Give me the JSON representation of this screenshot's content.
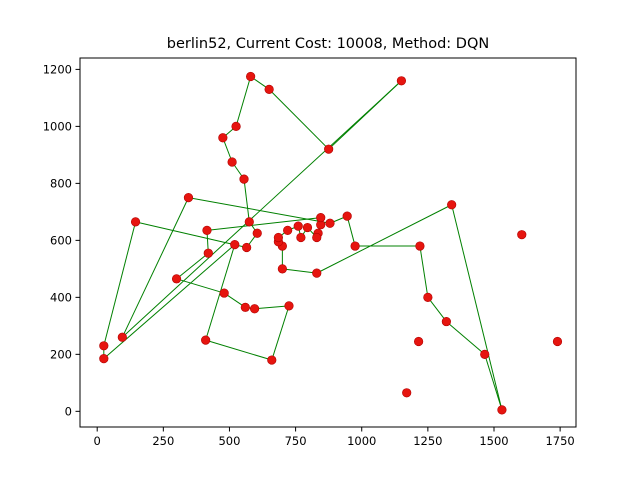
{
  "chart_data": {
    "type": "scatter",
    "title": "berlin52, Current Cost: 10008, Method: DQN",
    "xlabel": "",
    "ylabel": "",
    "xlim": [
      -65,
      1810
    ],
    "ylim": [
      -55,
      1240
    ],
    "grid": false,
    "legend": "none",
    "xticks": [
      0,
      250,
      500,
      750,
      1000,
      1250,
      1500,
      1750
    ],
    "yticks": [
      0,
      200,
      400,
      600,
      800,
      1000,
      1200
    ],
    "colors": {
      "point": "#e6150f",
      "point_edge": "#b30000",
      "route": "#008000"
    },
    "points": [
      {
        "x": 565,
        "y": 575
      },
      {
        "x": 25,
        "y": 185
      },
      {
        "x": 345,
        "y": 750
      },
      {
        "x": 945,
        "y": 685
      },
      {
        "x": 845,
        "y": 655
      },
      {
        "x": 880,
        "y": 660
      },
      {
        "x": 25,
        "y": 230
      },
      {
        "x": 525,
        "y": 1000
      },
      {
        "x": 580,
        "y": 1175
      },
      {
        "x": 650,
        "y": 1130
      },
      {
        "x": 1605,
        "y": 620
      },
      {
        "x": 1220,
        "y": 580
      },
      {
        "x": 1465,
        "y": 200
      },
      {
        "x": 1530,
        "y": 5
      },
      {
        "x": 845,
        "y": 680
      },
      {
        "x": 725,
        "y": 370
      },
      {
        "x": 145,
        "y": 665
      },
      {
        "x": 415,
        "y": 635
      },
      {
        "x": 510,
        "y": 875
      },
      {
        "x": 560,
        "y": 365
      },
      {
        "x": 300,
        "y": 465
      },
      {
        "x": 520,
        "y": 585
      },
      {
        "x": 480,
        "y": 415
      },
      {
        "x": 835,
        "y": 625
      },
      {
        "x": 975,
        "y": 580
      },
      {
        "x": 1215,
        "y": 245
      },
      {
        "x": 1320,
        "y": 315
      },
      {
        "x": 1250,
        "y": 400
      },
      {
        "x": 660,
        "y": 180
      },
      {
        "x": 410,
        "y": 250
      },
      {
        "x": 420,
        "y": 555
      },
      {
        "x": 575,
        "y": 665
      },
      {
        "x": 1150,
        "y": 1160
      },
      {
        "x": 700,
        "y": 580
      },
      {
        "x": 685,
        "y": 595
      },
      {
        "x": 685,
        "y": 610
      },
      {
        "x": 770,
        "y": 610
      },
      {
        "x": 795,
        "y": 645
      },
      {
        "x": 720,
        "y": 635
      },
      {
        "x": 760,
        "y": 650
      },
      {
        "x": 475,
        "y": 960
      },
      {
        "x": 95,
        "y": 260
      },
      {
        "x": 875,
        "y": 920
      },
      {
        "x": 700,
        "y": 500
      },
      {
        "x": 555,
        "y": 815
      },
      {
        "x": 830,
        "y": 485
      },
      {
        "x": 1170,
        "y": 65
      },
      {
        "x": 830,
        "y": 610
      },
      {
        "x": 605,
        "y": 625
      },
      {
        "x": 595,
        "y": 360
      },
      {
        "x": 1340,
        "y": 725
      },
      {
        "x": 1740,
        "y": 245
      }
    ],
    "route": [
      0,
      48,
      31,
      44,
      18,
      40,
      7,
      8,
      9,
      42,
      32,
      41,
      2,
      5,
      3,
      24,
      11,
      27,
      26,
      12,
      13,
      50,
      45,
      43,
      33,
      34,
      35,
      38,
      39,
      36,
      37,
      47,
      23,
      4,
      14,
      17,
      30,
      20,
      22,
      19,
      49,
      15,
      28,
      29,
      21,
      1,
      6,
      16,
      0
    ]
  }
}
